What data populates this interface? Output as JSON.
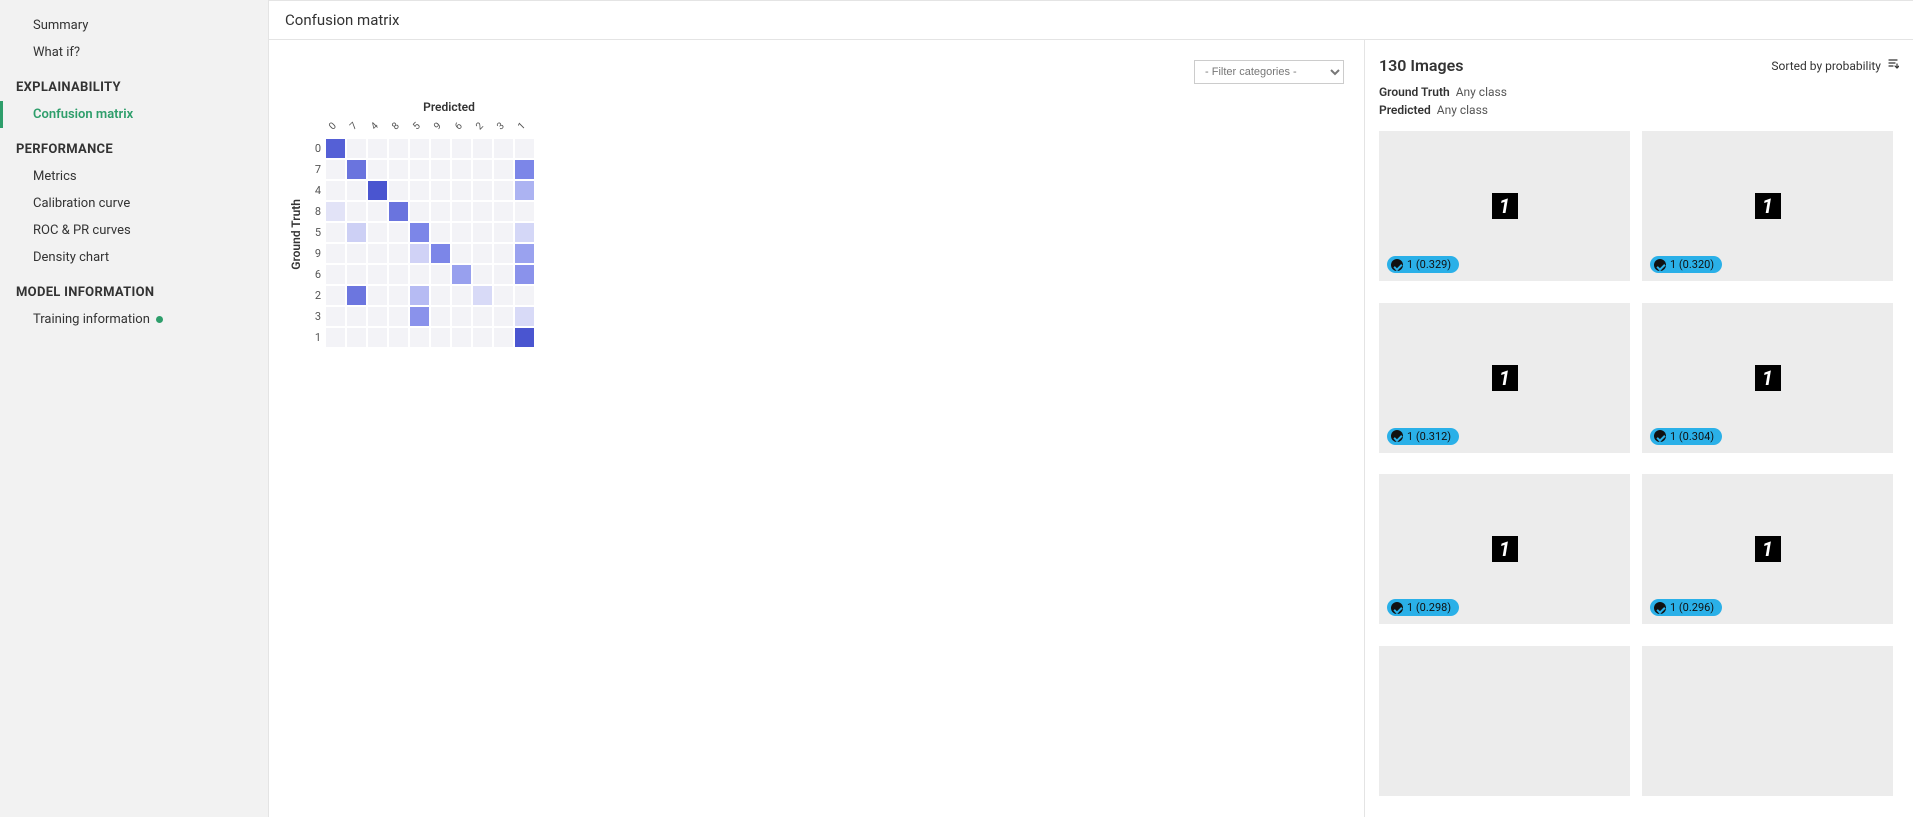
{
  "sidebar": {
    "top_items": [
      {
        "label": "Summary"
      },
      {
        "label": "What if?"
      }
    ],
    "sections": [
      {
        "header": "EXPLAINABILITY",
        "items": [
          {
            "label": "Confusion matrix",
            "active": true
          }
        ]
      },
      {
        "header": "PERFORMANCE",
        "items": [
          {
            "label": "Metrics"
          },
          {
            "label": "Calibration curve"
          },
          {
            "label": "ROC & PR curves"
          },
          {
            "label": "Density chart"
          }
        ]
      },
      {
        "header": "MODEL INFORMATION",
        "items": [
          {
            "label": "Training information",
            "status_dot": true
          }
        ]
      }
    ]
  },
  "main_title": "Confusion matrix",
  "filter_placeholder": "- Filter categories -",
  "confusion_matrix": {
    "type": "heatmap",
    "x_label": "Predicted",
    "y_label": "Ground Truth",
    "x_ticks": [
      "0",
      "7",
      "4",
      "8",
      "5",
      "9",
      "6",
      "2",
      "3",
      "1"
    ],
    "y_ticks": [
      "0",
      "7",
      "4",
      "8",
      "5",
      "9",
      "6",
      "2",
      "3",
      "1"
    ],
    "cell_size": 21,
    "nrows": 10,
    "ncols": 10,
    "background_color": "#f3f3f7",
    "grid_color": "#ffffff",
    "label_fontsize": 11,
    "axis_label_fontsize": 12,
    "cells": [
      {
        "r": 0,
        "c": 0,
        "color": "#5560d6"
      },
      {
        "r": 1,
        "c": 1,
        "color": "#6a74de"
      },
      {
        "r": 1,
        "c": 9,
        "color": "#7c86e8"
      },
      {
        "r": 2,
        "c": 2,
        "color": "#4a55d0"
      },
      {
        "r": 2,
        "c": 9,
        "color": "#acb3f2"
      },
      {
        "r": 3,
        "c": 0,
        "color": "#e2e3f7"
      },
      {
        "r": 3,
        "c": 3,
        "color": "#6a74de"
      },
      {
        "r": 4,
        "c": 1,
        "color": "#cdd0f5"
      },
      {
        "r": 4,
        "c": 4,
        "color": "#7c86e8"
      },
      {
        "r": 4,
        "c": 9,
        "color": "#d4d7f7"
      },
      {
        "r": 5,
        "c": 4,
        "color": "#d0d2f6"
      },
      {
        "r": 5,
        "c": 5,
        "color": "#7c86e8"
      },
      {
        "r": 5,
        "c": 9,
        "color": "#9aa2ef"
      },
      {
        "r": 6,
        "c": 6,
        "color": "#98a0ee"
      },
      {
        "r": 6,
        "c": 9,
        "color": "#8a92eb"
      },
      {
        "r": 7,
        "c": 1,
        "color": "#6c76df"
      },
      {
        "r": 7,
        "c": 4,
        "color": "#b6bbf3"
      },
      {
        "r": 7,
        "c": 7,
        "color": "#d8daf7"
      },
      {
        "r": 8,
        "c": 4,
        "color": "#8a92eb"
      },
      {
        "r": 8,
        "c": 9,
        "color": "#d8daf7"
      },
      {
        "r": 9,
        "c": 9,
        "color": "#4a55d0"
      }
    ]
  },
  "images_panel": {
    "title": "130 Images",
    "sort_label": "Sorted by probability",
    "filters": [
      {
        "key": "Ground Truth",
        "val": "Any class"
      },
      {
        "key": "Predicted",
        "val": "Any class"
      }
    ],
    "badge_bg": "#2ab0e8",
    "card_bg": "#ececec",
    "thumb_bg": "#000000",
    "thumb_fg": "#ffffff",
    "cards": [
      {
        "glyph": "1",
        "badge": "1 (0.329)"
      },
      {
        "glyph": "1",
        "badge": "1 (0.320)"
      },
      {
        "glyph": "1",
        "badge": "1 (0.312)"
      },
      {
        "glyph": "1",
        "badge": "1 (0.304)"
      },
      {
        "glyph": "1",
        "badge": "1 (0.298)"
      },
      {
        "glyph": "1",
        "badge": "1 (0.296)"
      },
      {
        "glyph": "",
        "badge": ""
      },
      {
        "glyph": "",
        "badge": ""
      }
    ]
  }
}
